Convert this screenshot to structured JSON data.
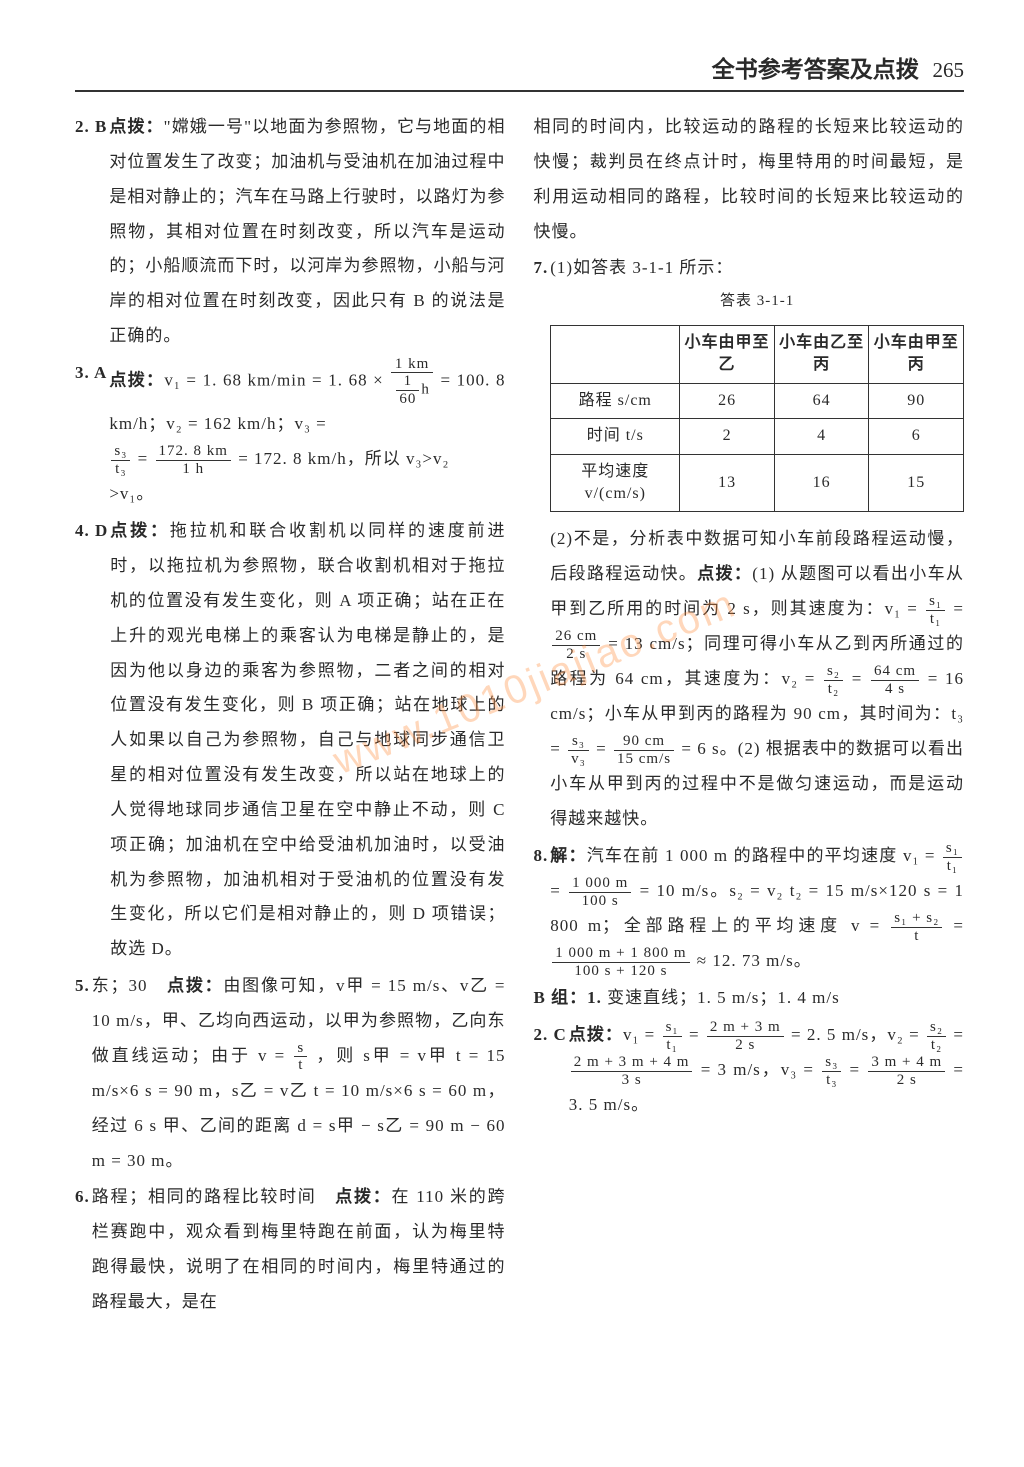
{
  "header": {
    "title": "全书参考答案及点拨",
    "page": "265"
  },
  "watermark": "www.1010jiajiao.com",
  "left": {
    "q2": {
      "num": "2. B",
      "label": "点拨：",
      "text": "\"嫦娥一号\"以地面为参照物，它与地面的相对位置发生了改变；加油机与受油机在加油过程中是相对静止的；汽车在马路上行驶时，以路灯为参照物，其相对位置在时刻改变，所以汽车是运动的；小船顺流而下时，以河岸为参照物，小船与河岸的相对位置在时刻改变，因此只有 B 的说法是正确的。"
    },
    "q3": {
      "num": "3. A",
      "label": "点拨：",
      "line1_a": "v₁ = 1. 68 km/min = 1. 68 ×",
      "frac1_n": "1 km",
      "frac1_d": "1",
      "frac1_d2": "60",
      "frac1_d3": "h",
      "line1_b": "= 100. 8 km/h；v₂ = 162 km/h；v₃ =",
      "frac2_n": "s₃",
      "frac2_d": "t₃",
      "eq": " = ",
      "frac3_n": "172. 8 km",
      "frac3_d": "1 h",
      "line2": " = 172. 8 km/h，所以 v₃>v₂",
      "line3": ">v₁。"
    },
    "q4": {
      "num": "4. D",
      "label": "点拨：",
      "text": "拖拉机和联合收割机以同样的速度前进时，以拖拉机为参照物，联合收割机相对于拖拉机的位置没有发生变化，则 A 项正确；站在正在上升的观光电梯上的乘客认为电梯是静止的，是因为他以身边的乘客为参照物，二者之间的相对位置没有发生变化，则 B 项正确；站在地球上的人如果以自己为参照物，自己与地球同步通信卫星的相对位置没有发生改变，所以站在地球上的人觉得地球同步通信卫星在空中静止不动，则 C 项正确；加油机在空中给受油机加油时，以受油机为参照物，加油机相对于受油机的位置没有发生变化，所以它们是相对静止的，则 D 项错误；故选 D。"
    },
    "q5": {
      "num": "5.",
      "ans": "东；30",
      "label": "点拨：",
      "t1": "由图像可知，v甲 = 15 m/s、v乙 = 10 m/s，甲、乙均向西运动，以甲为参照物，乙向东做直线运动；由于 v = ",
      "frac_n": "s",
      "frac_d": "t",
      "t2": "，则 s甲 = v甲 t = 15 m/s×6 s = 90 m，s乙 = v乙 t = 10 m/s×6 s = 60 m，经过 6 s 甲、乙间的距离 d = s甲 − s乙 = 90 m − 60 m = 30 m。"
    },
    "q6": {
      "num": "6.",
      "ans": "路程；相同的路程比较时间",
      "label": "点拨：",
      "text": "在 110 米的跨栏赛跑中，观众看到梅里特跑在前面，认为梅里特跑得最快，说明了在相同的时间内，梅里特通过的路程最大，是在"
    }
  },
  "right": {
    "cont6": "相同的时间内，比较运动的路程的长短来比较运动的快慢；裁判员在终点计时，梅里特用的时间最短，是利用运动相同的路程，比较时间的长短来比较运动的快慢。",
    "q7": {
      "num": "7.",
      "part1": "(1)如答表 3-1-1 所示：",
      "caption": "答表 3-1-1",
      "table": {
        "headers": [
          "",
          "小车由甲至乙",
          "小车由乙至丙",
          "小车由甲至丙"
        ],
        "rows": [
          [
            "路程 s/cm",
            "26",
            "64",
            "90"
          ],
          [
            "时间 t/s",
            "2",
            "4",
            "6"
          ],
          [
            "平均速度 v/(cm/s)",
            "13",
            "16",
            "15"
          ]
        ]
      },
      "part2a": "(2)不是，分析表中数据可知小车前段路程运动慢，后段路程运动快。",
      "label": "点拨：",
      "part2b": "(1) 从题图可以看出小车从甲到乙所用的时间为 2 s，则其速度为：v₁ = ",
      "f1n": "s₁",
      "f1d": "t₁",
      "eq": " = ",
      "f2n": "26 cm",
      "f2d": "2 s",
      "part2c": " = 13 cm/s；同理可得小车从乙到丙所通过的路程为 64 cm，其速度为：v₂ = ",
      "f3n": "s₂",
      "f3d": "t₂",
      "f4n": "64 cm",
      "f4d": "4 s",
      "part2d": " = 16 cm/s；小车从甲到丙的路程为 90 cm，其时间为：t₃ = ",
      "f5n": "s₃",
      "f5d": "v₃",
      "f6n": "90 cm",
      "f6d": "15 cm/s",
      "part2e": " = 6 s。(2) 根据表中的数据可以看出小车从甲到丙的过程中不是做匀速运动，而是运动得越来越快。"
    },
    "q8": {
      "num": "8.",
      "pre": "解：",
      "t1": "汽车在前 1 000 m 的路程中的平均速度 v₁ = ",
      "f1n": "s₁",
      "f1d": "t₁",
      "f2n": "1 000 m",
      "f2d": "100 s",
      "t2": " = 10 m/s。s₂ = v₂ t₂ = 15 m/s×120 s = 1 800 m；全部路程上的平均速度 v = ",
      "f3n": "s₁ + s₂",
      "f3d": "t",
      "f4n": "1 000 m + 1 800 m",
      "f4d": "100 s + 120 s",
      "t3": " ≈ 12. 73 m/s。"
    },
    "groupB": {
      "head": "B 组：1.",
      "ans1": "变速直线；1. 5 m/s；1. 4 m/s"
    },
    "q2b": {
      "num": "2. C",
      "label": "点拨：",
      "t1": "v₁ = ",
      "f1n": "s₁",
      "f1d": "t₁",
      "f2n": "2 m + 3 m",
      "f2d": "2 s",
      "t2": " = 2. 5 m/s，v₂ = ",
      "f3n": "s₂",
      "f3d": "t₂",
      "f4n": "2 m + 3 m + 4 m",
      "f4d": "3 s",
      "t3": " = 3 m/s，v₃ = ",
      "f5n": "s₃",
      "f5d": "t₃",
      "f6n": "3 m + 4 m",
      "f6d": "2 s",
      "t4": " = 3. 5 m/s。"
    }
  }
}
